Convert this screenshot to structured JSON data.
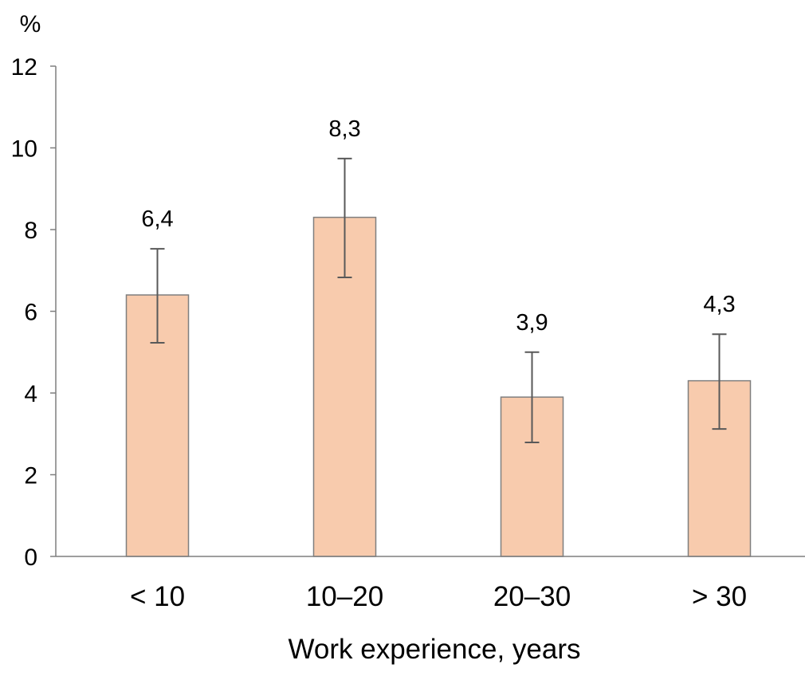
{
  "chart_data": {
    "type": "bar",
    "title": "",
    "ylabel": "%",
    "xlabel": "Work experience, years",
    "categories": [
      "< 10",
      "10–20",
      "20–30",
      "> 30"
    ],
    "values": [
      6.4,
      8.3,
      3.9,
      4.3
    ],
    "value_labels": [
      "6,4",
      "8,3",
      "3,9",
      "4,3"
    ],
    "error_low": [
      5.23,
      6.83,
      2.79,
      3.12
    ],
    "error_high": [
      7.53,
      9.74,
      5.0,
      5.44
    ],
    "ylim": [
      0,
      12
    ],
    "yticks": [
      0,
      2,
      4,
      6,
      8,
      10,
      12
    ],
    "grid": false,
    "colors": {
      "bar": "#F8CBAD",
      "bar_edge": "#7F7F7F",
      "error": "#595959",
      "axis": "#7F7F7F"
    }
  }
}
